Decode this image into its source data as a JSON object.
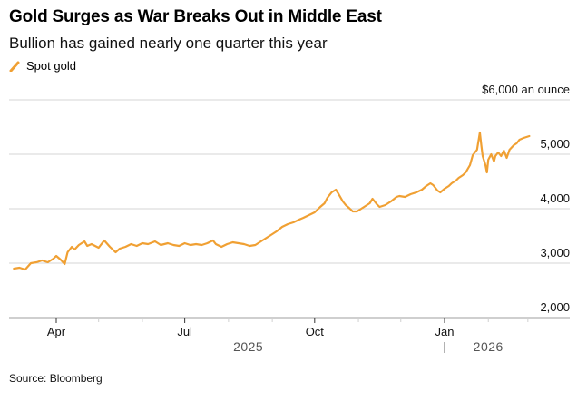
{
  "chart_data": {
    "type": "line",
    "title": "Gold Surges as War Breaks Out in Middle East",
    "subtitle": "Bullion has gained nearly one quarter this year",
    "legend": [
      {
        "name": "Spot gold",
        "color": "#F0A033"
      }
    ],
    "legend_position": "top-left",
    "source": "Source: Bloomberg",
    "ylabel": "$ an ounce",
    "ylim": [
      2000,
      6000
    ],
    "yticks": [
      {
        "value": 6000,
        "label": "$6,000 an ounce"
      },
      {
        "value": 5000,
        "label": "5,000"
      },
      {
        "value": 4000,
        "label": "4,000"
      },
      {
        "value": 3000,
        "label": "3,000"
      },
      {
        "value": 2000,
        "label": "2,000"
      }
    ],
    "xlim": [
      "2025-02-24",
      "2026-03-31"
    ],
    "xticks_major": [
      {
        "date": "2025-04-01",
        "label": "Apr"
      },
      {
        "date": "2025-07-01",
        "label": "Jul"
      },
      {
        "date": "2025-10-01",
        "label": "Oct"
      },
      {
        "date": "2026-01-01",
        "label": "Jan"
      }
    ],
    "xticks_minor": [
      "2025-05-01",
      "2025-06-01",
      "2025-08-01",
      "2025-09-01",
      "2025-11-01",
      "2025-12-01",
      "2026-02-01",
      "2026-03-01"
    ],
    "year_labels": [
      {
        "label": "2025",
        "date": "2025-08-15"
      },
      {
        "label": "2026",
        "date": "2026-02-01"
      }
    ],
    "year_divider": "2026-01-01",
    "grid": true,
    "series": [
      {
        "name": "Spot gold",
        "color": "#F0A033",
        "points": [
          [
            "2025-03-02",
            2900
          ],
          [
            "2025-03-06",
            2917
          ],
          [
            "2025-03-10",
            2883
          ],
          [
            "2025-03-14",
            3000
          ],
          [
            "2025-03-18",
            3017
          ],
          [
            "2025-03-22",
            3050
          ],
          [
            "2025-03-26",
            3017
          ],
          [
            "2025-03-30",
            3083
          ],
          [
            "2025-04-01",
            3133
          ],
          [
            "2025-04-04",
            3067
          ],
          [
            "2025-04-07",
            2983
          ],
          [
            "2025-04-09",
            3200
          ],
          [
            "2025-04-12",
            3300
          ],
          [
            "2025-04-14",
            3250
          ],
          [
            "2025-04-17",
            3333
          ],
          [
            "2025-04-21",
            3400
          ],
          [
            "2025-04-23",
            3317
          ],
          [
            "2025-04-26",
            3350
          ],
          [
            "2025-05-01",
            3283
          ],
          [
            "2025-05-05",
            3417
          ],
          [
            "2025-05-09",
            3300
          ],
          [
            "2025-05-13",
            3200
          ],
          [
            "2025-05-16",
            3267
          ],
          [
            "2025-05-20",
            3300
          ],
          [
            "2025-05-24",
            3350
          ],
          [
            "2025-05-28",
            3317
          ],
          [
            "2025-06-01",
            3367
          ],
          [
            "2025-06-05",
            3350
          ],
          [
            "2025-06-10",
            3400
          ],
          [
            "2025-06-14",
            3333
          ],
          [
            "2025-06-19",
            3367
          ],
          [
            "2025-06-23",
            3333
          ],
          [
            "2025-06-27",
            3317
          ],
          [
            "2025-07-01",
            3367
          ],
          [
            "2025-07-05",
            3333
          ],
          [
            "2025-07-09",
            3350
          ],
          [
            "2025-07-13",
            3333
          ],
          [
            "2025-07-17",
            3367
          ],
          [
            "2025-07-21",
            3417
          ],
          [
            "2025-07-23",
            3350
          ],
          [
            "2025-07-27",
            3300
          ],
          [
            "2025-07-31",
            3350
          ],
          [
            "2025-08-04",
            3383
          ],
          [
            "2025-08-08",
            3367
          ],
          [
            "2025-08-12",
            3350
          ],
          [
            "2025-08-16",
            3317
          ],
          [
            "2025-08-20",
            3333
          ],
          [
            "2025-08-23",
            3383
          ],
          [
            "2025-08-27",
            3450
          ],
          [
            "2025-08-31",
            3517
          ],
          [
            "2025-09-04",
            3583
          ],
          [
            "2025-09-08",
            3667
          ],
          [
            "2025-09-12",
            3717
          ],
          [
            "2025-09-16",
            3750
          ],
          [
            "2025-09-20",
            3800
          ],
          [
            "2025-09-23",
            3833
          ],
          [
            "2025-09-27",
            3883
          ],
          [
            "2025-10-01",
            3933
          ],
          [
            "2025-10-05",
            4033
          ],
          [
            "2025-10-08",
            4100
          ],
          [
            "2025-10-10",
            4200
          ],
          [
            "2025-10-13",
            4300
          ],
          [
            "2025-10-16",
            4350
          ],
          [
            "2025-10-18",
            4267
          ],
          [
            "2025-10-21",
            4133
          ],
          [
            "2025-10-23",
            4067
          ],
          [
            "2025-10-26",
            4000
          ],
          [
            "2025-10-28",
            3950
          ],
          [
            "2025-10-31",
            3950
          ],
          [
            "2025-11-02",
            3983
          ],
          [
            "2025-11-05",
            4033
          ],
          [
            "2025-11-09",
            4100
          ],
          [
            "2025-11-11",
            4183
          ],
          [
            "2025-11-14",
            4083
          ],
          [
            "2025-11-16",
            4033
          ],
          [
            "2025-11-20",
            4067
          ],
          [
            "2025-11-24",
            4133
          ],
          [
            "2025-11-28",
            4217
          ],
          [
            "2025-11-30",
            4233
          ],
          [
            "2025-12-04",
            4217
          ],
          [
            "2025-12-08",
            4267
          ],
          [
            "2025-12-12",
            4300
          ],
          [
            "2025-12-16",
            4350
          ],
          [
            "2025-12-19",
            4417
          ],
          [
            "2025-12-22",
            4467
          ],
          [
            "2025-12-24",
            4433
          ],
          [
            "2025-12-27",
            4333
          ],
          [
            "2025-12-29",
            4300
          ],
          [
            "2026-01-01",
            4367
          ],
          [
            "2026-01-04",
            4417
          ],
          [
            "2026-01-06",
            4467
          ],
          [
            "2026-01-09",
            4517
          ],
          [
            "2026-01-11",
            4567
          ],
          [
            "2026-01-14",
            4617
          ],
          [
            "2026-01-16",
            4667
          ],
          [
            "2026-01-19",
            4800
          ],
          [
            "2026-01-21",
            4983
          ],
          [
            "2026-01-24",
            5083
          ],
          [
            "2026-01-26",
            5400
          ],
          [
            "2026-01-27",
            5167
          ],
          [
            "2026-01-28",
            4967
          ],
          [
            "2026-01-30",
            4800
          ],
          [
            "2026-01-31",
            4667
          ],
          [
            "2026-02-01",
            4900
          ],
          [
            "2026-02-03",
            5000
          ],
          [
            "2026-02-05",
            4867
          ],
          [
            "2026-02-06",
            4967
          ],
          [
            "2026-02-08",
            5033
          ],
          [
            "2026-02-10",
            4967
          ],
          [
            "2026-02-12",
            5067
          ],
          [
            "2026-02-14",
            4933
          ],
          [
            "2026-02-16",
            5083
          ],
          [
            "2026-02-19",
            5167
          ],
          [
            "2026-02-21",
            5200
          ],
          [
            "2026-02-23",
            5267
          ],
          [
            "2026-02-26",
            5300
          ],
          [
            "2026-03-02",
            5333
          ]
        ]
      }
    ]
  }
}
